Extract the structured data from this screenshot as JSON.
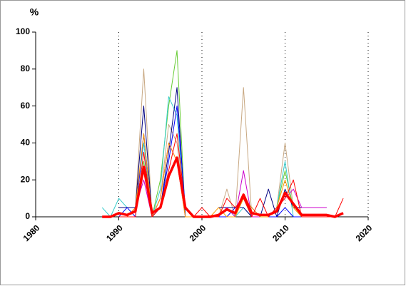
{
  "chart_data": {
    "type": "line",
    "y_label": "%",
    "x": [
      1988,
      1989,
      1990,
      1991,
      1992,
      1993,
      1994,
      1995,
      1996,
      1997,
      1998,
      1999,
      2000,
      2001,
      2002,
      2003,
      2004,
      2005,
      2006,
      2007,
      2008,
      2009,
      2010,
      2011,
      2012,
      2013,
      2014,
      2015,
      2016,
      2017
    ],
    "xlim": [
      1980,
      2020
    ],
    "xticks": [
      1980,
      1990,
      2000,
      2010,
      2020
    ],
    "ylim": [
      0,
      100
    ],
    "yticks": [
      0,
      20,
      40,
      60,
      80,
      100
    ],
    "grid": "x",
    "series": [
      {
        "color": "#c8a882",
        "line_width": 1,
        "values": [
          null,
          null,
          0,
          0,
          5,
          80,
          0,
          10,
          50,
          40,
          0,
          0,
          null,
          null,
          0,
          15,
          0,
          70,
          0,
          0,
          0,
          5,
          40,
          5,
          0,
          0,
          0,
          0,
          null,
          null
        ]
      },
      {
        "color": "#66cc33",
        "line_width": 1,
        "values": [
          null,
          null,
          0,
          0,
          5,
          30,
          0,
          20,
          60,
          90,
          0,
          0,
          null,
          null,
          0,
          5,
          0,
          10,
          0,
          0,
          0,
          5,
          25,
          5,
          0,
          0,
          0,
          0,
          null,
          null
        ]
      },
      {
        "color": "#33cccc",
        "line_width": 1,
        "values": [
          5,
          0,
          10,
          5,
          5,
          40,
          0,
          15,
          65,
          55,
          0,
          0,
          null,
          null,
          0,
          5,
          0,
          5,
          0,
          0,
          0,
          5,
          30,
          0,
          0,
          0,
          0,
          0,
          null,
          null
        ]
      },
      {
        "color": "#000080",
        "line_width": 1,
        "values": [
          null,
          null,
          5,
          5,
          5,
          60,
          0,
          5,
          35,
          70,
          0,
          0,
          null,
          null,
          5,
          5,
          5,
          5,
          0,
          0,
          15,
          0,
          15,
          5,
          5,
          5,
          5,
          5,
          null,
          null
        ]
      },
      {
        "color": "#cc00cc",
        "line_width": 1,
        "values": [
          null,
          null,
          0,
          0,
          5,
          20,
          0,
          10,
          40,
          30,
          0,
          0,
          null,
          null,
          0,
          5,
          0,
          25,
          0,
          0,
          0,
          5,
          10,
          15,
          5,
          5,
          5,
          5,
          null,
          null
        ]
      },
      {
        "color": "#0000ff",
        "line_width": 1,
        "values": [
          null,
          null,
          0,
          5,
          0,
          45,
          0,
          5,
          30,
          60,
          5,
          0,
          null,
          null,
          0,
          0,
          5,
          10,
          5,
          0,
          0,
          0,
          5,
          0,
          0,
          0,
          0,
          0,
          null,
          null
        ]
      },
      {
        "color": "#ff9900",
        "line_width": 1,
        "values": [
          null,
          null,
          0,
          0,
          5,
          45,
          0,
          10,
          40,
          30,
          0,
          0,
          null,
          0,
          5,
          0,
          0,
          10,
          5,
          0,
          0,
          5,
          20,
          5,
          0,
          0,
          0,
          0,
          0,
          null
        ]
      },
      {
        "color": "#ff0000",
        "line_width": 1,
        "values": [
          null,
          null,
          0,
          0,
          0,
          35,
          0,
          5,
          25,
          45,
          5,
          0,
          5,
          0,
          0,
          10,
          5,
          10,
          0,
          10,
          0,
          5,
          10,
          20,
          0,
          0,
          0,
          0,
          0,
          10
        ]
      },
      {
        "color": "#ff0000",
        "line_width": 3.5,
        "values": [
          0,
          0,
          2,
          1,
          3,
          27,
          2,
          5,
          22,
          32,
          5,
          0,
          0,
          0,
          1,
          4,
          2,
          12,
          2,
          1,
          1,
          3,
          13,
          7,
          1,
          1,
          1,
          1,
          0,
          2
        ]
      }
    ]
  }
}
